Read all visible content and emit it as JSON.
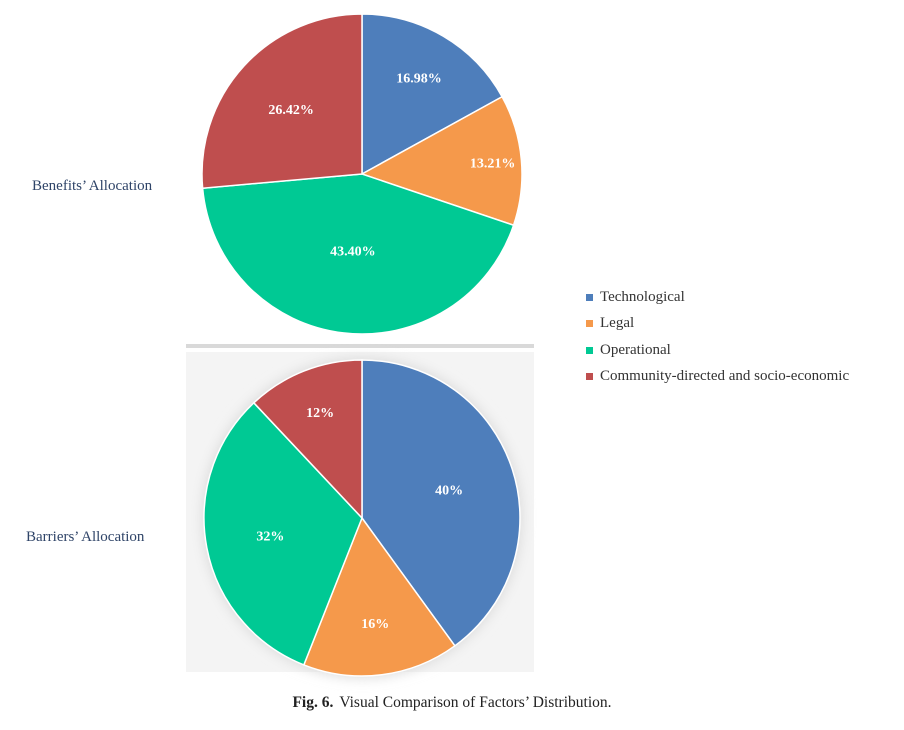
{
  "categories": [
    "Technological",
    "Legal",
    "Operational",
    "Community-directed and socio-economic"
  ],
  "colors": [
    "#4e7ebb",
    "#f5994b",
    "#00c994",
    "#bf4e4e"
  ],
  "chart_data": [
    {
      "type": "pie",
      "title": "Benefits’ Allocation",
      "labels": [
        "Technological",
        "Legal",
        "Operational",
        "Community-directed and socio-economic"
      ],
      "values": [
        16.98,
        13.21,
        43.4,
        26.42
      ],
      "value_labels": [
        "16.98%",
        "13.21%",
        "43.40%",
        "26.42%"
      ]
    },
    {
      "type": "pie",
      "title": "Barriers’ Allocation",
      "labels": [
        "Technological",
        "Legal",
        "Operational",
        "Community-directed and socio-economic"
      ],
      "values": [
        40,
        16,
        32,
        12
      ],
      "value_labels": [
        "40%",
        "16%",
        "32%",
        "12%"
      ]
    }
  ],
  "caption": {
    "prefix": "Fig. 6.",
    "text": "Visual Comparison of Factors’ Distribution."
  }
}
